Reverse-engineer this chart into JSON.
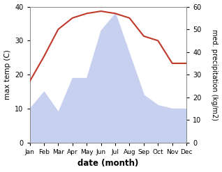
{
  "months": [
    "Jan",
    "Feb",
    "Mar",
    "Apr",
    "May",
    "Jun",
    "Jul",
    "Aug",
    "Sep",
    "Oct",
    "Nov",
    "Dec"
  ],
  "max_temp": [
    10,
    15,
    9,
    19,
    19,
    33,
    38,
    26,
    14,
    11,
    10,
    10
  ],
  "precipitation": [
    27,
    38,
    50,
    55,
    57,
    58,
    57,
    55,
    47,
    45,
    35,
    35
  ],
  "precip_color": "#c0392b",
  "temp_fill_color": "#c8d0f0",
  "left_ylim": [
    0,
    40
  ],
  "right_ylim": [
    0,
    60
  ],
  "left_ylabel": "max temp (C)",
  "right_ylabel": "med. precipitation (kg/m2)",
  "xlabel": "date (month)",
  "left_yticks": [
    0,
    10,
    20,
    30,
    40
  ],
  "right_yticks": [
    0,
    10,
    20,
    30,
    40,
    50,
    60
  ]
}
